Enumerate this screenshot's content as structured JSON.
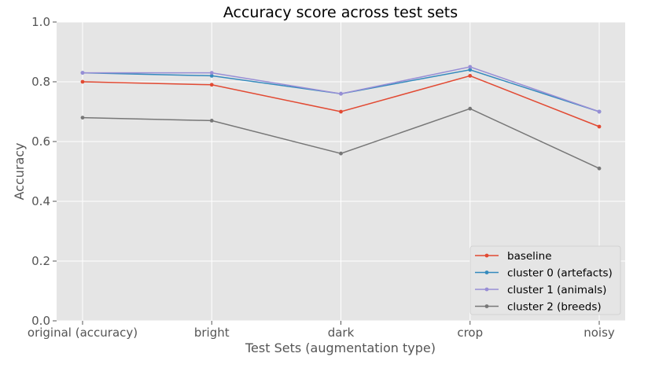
{
  "chart_data": {
    "type": "line",
    "title": "Accuracy score across test sets",
    "xlabel": "Test Sets (augmentation type)",
    "ylabel": "Accuracy",
    "categories": [
      "original (accuracy)",
      "bright",
      "dark",
      "crop",
      "noisy"
    ],
    "ylim": [
      0.0,
      1.0
    ],
    "yticks": [
      "0.0",
      "0.2",
      "0.4",
      "0.6",
      "0.8",
      "1.0"
    ],
    "grid": true,
    "legend_position": "bottom-right",
    "series": [
      {
        "name": "baseline",
        "color": "#E24A33",
        "values": [
          0.8,
          0.79,
          0.7,
          0.82,
          0.65
        ]
      },
      {
        "name": "cluster 0 (artefacts)",
        "color": "#348ABD",
        "values": [
          0.83,
          0.82,
          0.76,
          0.84,
          0.7
        ]
      },
      {
        "name": "cluster 1 (animals)",
        "color": "#988ED5",
        "values": [
          0.83,
          0.83,
          0.76,
          0.85,
          0.7
        ]
      },
      {
        "name": "cluster 2 (breeds)",
        "color": "#777777",
        "values": [
          0.68,
          0.67,
          0.56,
          0.71,
          0.51
        ]
      }
    ]
  }
}
